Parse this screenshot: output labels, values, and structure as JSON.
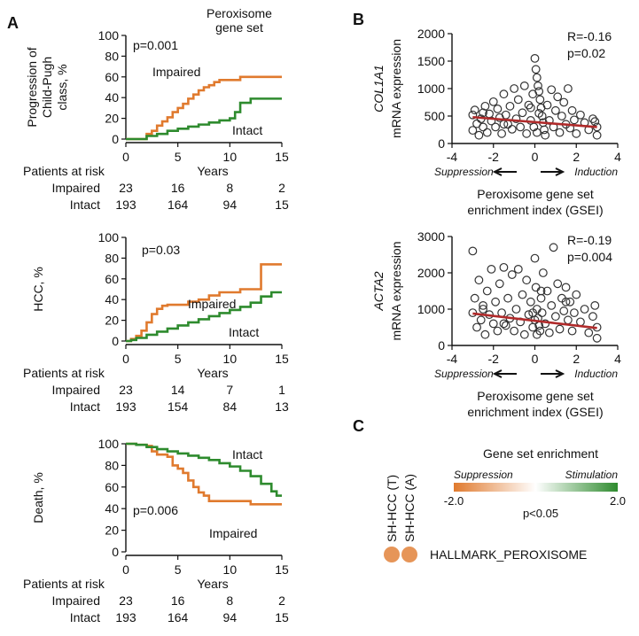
{
  "panels": {
    "a": "A",
    "b": "B",
    "c": "C"
  },
  "colors": {
    "impaired": "#e07a2e",
    "intact": "#2e8b2e",
    "fit": "#b02a2a",
    "point": "#333333"
  },
  "km_header": "Peroxisome\ngene set",
  "chart_data": [
    {
      "id": "km1",
      "type": "line",
      "ylabel": "Progression of\nChild-Pugh\nclass, %",
      "xlabel": "Years",
      "xlim": [
        0,
        15
      ],
      "ylim": [
        0,
        100
      ],
      "xticks": [
        0,
        5,
        10,
        15
      ],
      "yticks": [
        0,
        20,
        40,
        60,
        80,
        100
      ],
      "pvalue": "p=0.001",
      "series": [
        {
          "name": "Impaired",
          "color": "#e07a2e",
          "x": [
            0,
            2,
            2.5,
            3,
            3.5,
            4,
            4.5,
            5,
            5.5,
            6,
            6.5,
            7,
            7.5,
            8,
            8.5,
            9,
            10,
            11,
            12,
            15
          ],
          "y": [
            0,
            5,
            8,
            13,
            17,
            21,
            26,
            30,
            34,
            39,
            43,
            47,
            50,
            52,
            55,
            57,
            57,
            60,
            60,
            60
          ]
        },
        {
          "name": "Intact",
          "color": "#2e8b2e",
          "x": [
            0,
            2,
            3,
            4,
            5,
            6,
            7,
            8,
            9,
            10,
            10.5,
            11,
            12,
            15
          ],
          "y": [
            0,
            3,
            5,
            8,
            10,
            12,
            14,
            16,
            18,
            20,
            26,
            35,
            39,
            39
          ]
        }
      ],
      "risk": {
        "title": "Patients at risk",
        "rows": [
          {
            "label": "Impaired",
            "values": [
              "23",
              "16",
              "8",
              "2"
            ]
          },
          {
            "label": "Intact",
            "values": [
              "193",
              "164",
              "94",
              "15"
            ]
          }
        ]
      }
    },
    {
      "id": "km2",
      "type": "line",
      "ylabel": "HCC, %",
      "xlabel": "Years",
      "xlim": [
        0,
        15
      ],
      "ylim": [
        0,
        100
      ],
      "xticks": [
        0,
        5,
        10,
        15
      ],
      "yticks": [
        0,
        20,
        40,
        60,
        80,
        100
      ],
      "pvalue": "p=0.03",
      "series": [
        {
          "name": "Impaired",
          "color": "#e07a2e",
          "x": [
            0,
            0.5,
            1,
            1.5,
            2,
            2.5,
            3,
            3.5,
            4,
            5,
            6,
            7,
            8,
            9,
            10,
            11,
            12,
            12.5,
            13,
            15
          ],
          "y": [
            0,
            2,
            5,
            10,
            18,
            26,
            31,
            34,
            35,
            35,
            38,
            40,
            44,
            47,
            47,
            50,
            50,
            50,
            74,
            74
          ]
        },
        {
          "name": "Intact",
          "color": "#2e8b2e",
          "x": [
            0,
            0.5,
            1,
            2,
            3,
            4,
            5,
            6,
            7,
            8,
            9,
            10,
            11,
            12,
            13,
            14,
            15
          ],
          "y": [
            0,
            1,
            3,
            6,
            9,
            12,
            15,
            18,
            21,
            24,
            27,
            30,
            33,
            37,
            43,
            47,
            47
          ]
        }
      ],
      "risk": {
        "title": "Patients at risk",
        "rows": [
          {
            "label": "Impaired",
            "values": [
              "23",
              "14",
              "7",
              "1"
            ]
          },
          {
            "label": "Intact",
            "values": [
              "193",
              "154",
              "84",
              "13"
            ]
          }
        ]
      }
    },
    {
      "id": "km3",
      "type": "line",
      "ylabel": "Death, %",
      "xlabel": "Years",
      "xlim": [
        0,
        15
      ],
      "ylim": [
        0,
        100
      ],
      "xticks": [
        0,
        5,
        10,
        15
      ],
      "yticks": [
        0,
        20,
        40,
        60,
        80,
        100
      ],
      "pvalue": "p=0.006",
      "series": [
        {
          "name": "Impaired",
          "color": "#e07a2e",
          "x": [
            0,
            1,
            2,
            2.5,
            3,
            4,
            4.5,
            5,
            5.5,
            6,
            6.5,
            7,
            7.5,
            8,
            10,
            12,
            15
          ],
          "y": [
            100,
            99,
            98,
            93,
            90,
            88,
            80,
            77,
            73,
            66,
            60,
            55,
            52,
            47,
            47,
            44,
            44
          ]
        },
        {
          "name": "Intact",
          "color": "#2e8b2e",
          "x": [
            0,
            1,
            2,
            3,
            4,
            5,
            6,
            7,
            8,
            9,
            10,
            11,
            12,
            13,
            14,
            14.5,
            15
          ],
          "y": [
            100,
            99,
            97,
            95,
            93,
            91,
            89,
            87,
            85,
            82,
            79,
            75,
            70,
            63,
            56,
            52,
            52
          ]
        }
      ],
      "risk": {
        "title": "Patients at risk",
        "rows": [
          {
            "label": "Impaired",
            "values": [
              "23",
              "16",
              "8",
              "2"
            ]
          },
          {
            "label": "Intact",
            "values": [
              "193",
              "164",
              "94",
              "15"
            ]
          }
        ]
      }
    },
    {
      "id": "sc1",
      "type": "scatter",
      "gene": "COL1A1",
      "ylabel": "mRNA expression",
      "xlabel": "Peroxisome gene set\nenrichment index (GSEI)",
      "xlim": [
        -4,
        4
      ],
      "ylim": [
        0,
        2000
      ],
      "xticks": [
        -4,
        -2,
        0,
        2,
        4
      ],
      "yticks": [
        0,
        500,
        1000,
        1500,
        2000
      ],
      "r": "R=-0.16",
      "p": "p=0.02",
      "suppression": "Suppression",
      "induction": "Induction",
      "fit": {
        "x": [
          -3,
          3
        ],
        "y": [
          480,
          300
        ]
      },
      "points": [
        [
          -3,
          520
        ],
        [
          -3,
          240
        ],
        [
          -2.9,
          610
        ],
        [
          -2.8,
          360
        ],
        [
          -2.7,
          150
        ],
        [
          -2.6,
          450
        ],
        [
          -2.5,
          300
        ],
        [
          -2.4,
          680
        ],
        [
          -2.3,
          200
        ],
        [
          -2.2,
          540
        ],
        [
          -2.1,
          410
        ],
        [
          -2,
          760
        ],
        [
          -1.9,
          300
        ],
        [
          -1.8,
          630
        ],
        [
          -1.7,
          470
        ],
        [
          -1.6,
          180
        ],
        [
          -1.5,
          900
        ],
        [
          -1.4,
          520
        ],
        [
          -1.3,
          350
        ],
        [
          -1.2,
          680
        ],
        [
          -1.1,
          260
        ],
        [
          -1,
          1000
        ],
        [
          -0.9,
          450
        ],
        [
          -0.8,
          800
        ],
        [
          -0.7,
          300
        ],
        [
          -0.6,
          560
        ],
        [
          -0.5,
          1050
        ],
        [
          -0.4,
          180
        ],
        [
          -0.3,
          700
        ],
        [
          -0.2,
          420
        ],
        [
          -0.1,
          900
        ],
        [
          0,
          1550
        ],
        [
          0.05,
          1350
        ],
        [
          0.1,
          1200
        ],
        [
          0.15,
          1050
        ],
        [
          0.2,
          950
        ],
        [
          0.25,
          800
        ],
        [
          0.3,
          650
        ],
        [
          0.35,
          500
        ],
        [
          0.4,
          380
        ],
        [
          0.45,
          250
        ],
        [
          0.5,
          150
        ],
        [
          0.6,
          700
        ],
        [
          0.7,
          420
        ],
        [
          0.8,
          980
        ],
        [
          0.9,
          300
        ],
        [
          1,
          600
        ],
        [
          1.1,
          850
        ],
        [
          1.2,
          200
        ],
        [
          1.3,
          500
        ],
        [
          1.4,
          750
        ],
        [
          1.5,
          350
        ],
        [
          1.6,
          1000
        ],
        [
          1.7,
          280
        ],
        [
          1.8,
          600
        ],
        [
          1.9,
          430
        ],
        [
          2,
          180
        ],
        [
          2.2,
          520
        ],
        [
          2.4,
          380
        ],
        [
          2.6,
          250
        ],
        [
          2.8,
          450
        ],
        [
          3,
          300
        ],
        [
          3,
          150
        ],
        [
          2.9,
          400
        ],
        [
          -0.05,
          300
        ],
        [
          0.1,
          200
        ],
        [
          0.2,
          550
        ],
        [
          -0.2,
          650
        ],
        [
          -1.5,
          350
        ],
        [
          -2.5,
          560
        ]
      ]
    },
    {
      "id": "sc2",
      "type": "scatter",
      "gene": "ACTA2",
      "ylabel": "mRNA expression",
      "xlabel": "Peroxisome gene set\nenrichment index (GSEI)",
      "xlim": [
        -4,
        4
      ],
      "ylim": [
        0,
        3000
      ],
      "xticks": [
        -4,
        -2,
        0,
        2,
        4
      ],
      "yticks": [
        0,
        1000,
        2000,
        3000
      ],
      "r": "R=-0.19",
      "p": "p=0.004",
      "suppression": "Suppression",
      "induction": "Induction",
      "fit": {
        "x": [
          -3,
          3
        ],
        "y": [
          880,
          480
        ]
      },
      "points": [
        [
          -3,
          2600
        ],
        [
          -3,
          900
        ],
        [
          -2.9,
          1300
        ],
        [
          -2.8,
          500
        ],
        [
          -2.7,
          1800
        ],
        [
          -2.6,
          700
        ],
        [
          -2.5,
          1100
        ],
        [
          -2.4,
          300
        ],
        [
          -2.3,
          1500
        ],
        [
          -2.2,
          850
        ],
        [
          -2.1,
          2100
        ],
        [
          -2,
          600
        ],
        [
          -1.9,
          1200
        ],
        [
          -1.8,
          400
        ],
        [
          -1.7,
          1700
        ],
        [
          -1.6,
          900
        ],
        [
          -1.5,
          2150
        ],
        [
          -1.4,
          550
        ],
        [
          -1.3,
          1300
        ],
        [
          -1.2,
          750
        ],
        [
          -1.1,
          1950
        ],
        [
          -1,
          400
        ],
        [
          -0.9,
          1000
        ],
        [
          -0.8,
          2100
        ],
        [
          -0.7,
          650
        ],
        [
          -0.6,
          1400
        ],
        [
          -0.5,
          300
        ],
        [
          -0.4,
          1800
        ],
        [
          -0.3,
          850
        ],
        [
          -0.2,
          1200
        ],
        [
          -0.1,
          500
        ],
        [
          0,
          2400
        ],
        [
          0.05,
          1600
        ],
        [
          0.1,
          1000
        ],
        [
          0.15,
          750
        ],
        [
          0.2,
          550
        ],
        [
          0.25,
          400
        ],
        [
          0.3,
          1300
        ],
        [
          0.35,
          900
        ],
        [
          0.4,
          2000
        ],
        [
          0.5,
          600
        ],
        [
          0.6,
          1500
        ],
        [
          0.7,
          350
        ],
        [
          0.8,
          1100
        ],
        [
          0.9,
          2700
        ],
        [
          1,
          800
        ],
        [
          1.1,
          1700
        ],
        [
          1.2,
          450
        ],
        [
          1.3,
          1300
        ],
        [
          1.4,
          950
        ],
        [
          1.5,
          1600
        ],
        [
          1.6,
          700
        ],
        [
          1.7,
          1200
        ],
        [
          1.8,
          400
        ],
        [
          1.9,
          900
        ],
        [
          2,
          1400
        ],
        [
          2.2,
          650
        ],
        [
          2.4,
          1000
        ],
        [
          2.6,
          350
        ],
        [
          2.8,
          800
        ],
        [
          3,
          500
        ],
        [
          3,
          200
        ],
        [
          2.9,
          1100
        ],
        [
          0,
          700
        ],
        [
          0.1,
          300
        ],
        [
          -0.1,
          900
        ],
        [
          -1.5,
          600
        ],
        [
          -2.5,
          1000
        ],
        [
          1.5,
          1200
        ],
        [
          0.3,
          1500
        ]
      ]
    }
  ],
  "heatmap": {
    "title": "Gene set enrichment",
    "suppression": "Suppression",
    "stimulation": "Stimulation",
    "min": "-2.0",
    "max": "2.0",
    "pvalue": "p<0.05",
    "columns": [
      "SH-HCC (T)",
      "SH-HCC (A)"
    ],
    "row_label": "HALLMARK_PEROXISOME",
    "values": [
      -1.6,
      -1.6
    ]
  }
}
